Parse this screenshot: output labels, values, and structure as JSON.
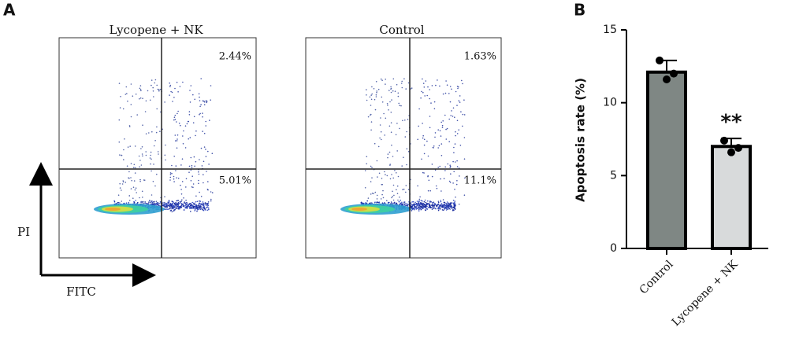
{
  "panel_labels": [
    "A",
    "B"
  ],
  "flow_cytometry": {
    "y_axis_label": "PI",
    "x_axis_label": "FITC",
    "plots": [
      {
        "title": "Lycopene + NK",
        "upper_right": "2.44%",
        "lower_right": "5.01%"
      },
      {
        "title": "Control",
        "upper_right": "1.63%",
        "lower_right": "11.1%"
      }
    ]
  },
  "chart_data": {
    "type": "bar",
    "ylabel": "Apoptosis rate (%)",
    "categories": [
      "Control",
      "Lycopene + NK"
    ],
    "values": [
      12.1,
      7.0
    ],
    "errors": [
      0.8,
      0.55
    ],
    "points": [
      [
        12.9,
        11.6,
        12.0
      ],
      [
        7.4,
        6.6,
        6.9
      ]
    ],
    "significance": [
      null,
      "**"
    ],
    "colors": [
      "#7f8784",
      "#d8dadb"
    ],
    "ylim": [
      0,
      15
    ],
    "yticks": [
      0,
      5,
      10,
      15
    ]
  }
}
